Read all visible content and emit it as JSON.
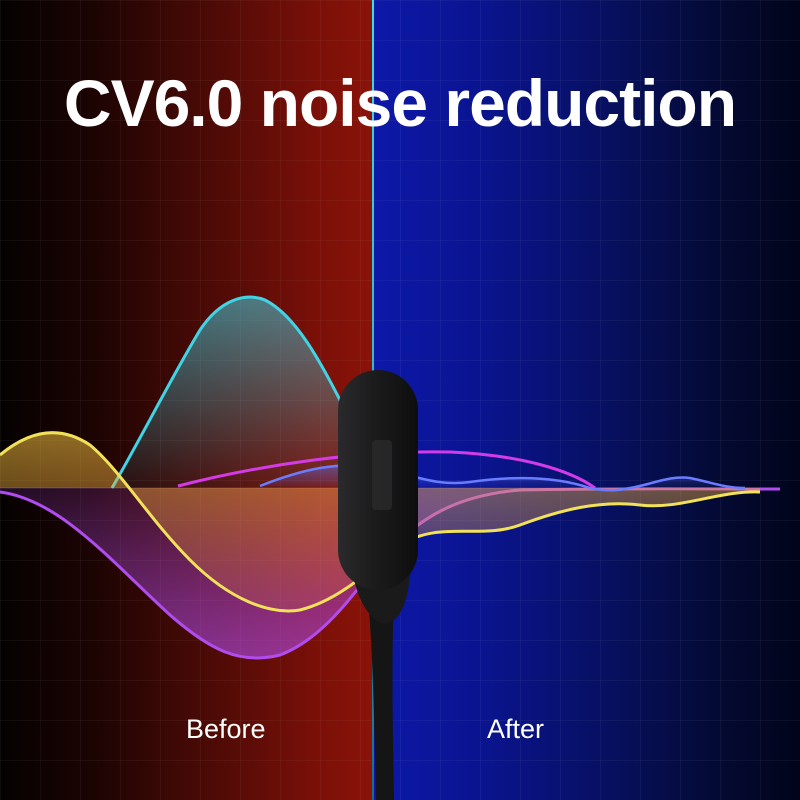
{
  "headline": "CV6.0 noise reduction",
  "labels": {
    "before": "Before",
    "after": "After"
  },
  "colors": {
    "before_accent": "#8a1309",
    "after_accent": "#0d18a8",
    "divider": "#38e0e8",
    "wave_cyan": "#3fd4e6",
    "wave_yellow": "#f2e25a",
    "wave_purple": "#b04cf0",
    "wave_magenta": "#d43be8",
    "microphone": "#1b1b1c"
  },
  "icons": [
    "microphone-illustration"
  ]
}
